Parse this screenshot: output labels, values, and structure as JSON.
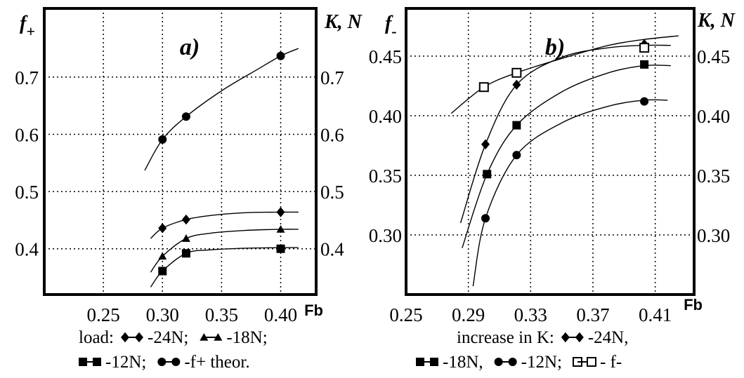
{
  "chart_data": [
    {
      "type": "scatter",
      "panel_label": "a)",
      "xlabel": "Fb",
      "ylabel_left": "f+",
      "ylabel_right": "K, N",
      "xlim": [
        0.2,
        0.43
      ],
      "ylim": [
        0.32,
        0.82
      ],
      "xticks": [
        "0.25",
        "0.30",
        "0.35",
        "0.40"
      ],
      "xtick_values": [
        0.25,
        0.3,
        0.35,
        0.4
      ],
      "yticks_left": [
        "0.4",
        "0.5",
        "0.6",
        "0.7"
      ],
      "yticks_right": [
        "0.4",
        "0.5",
        "0.6",
        "0.7"
      ],
      "ytick_values": [
        0.4,
        0.5,
        0.6,
        0.7
      ],
      "grid": true,
      "series": [
        {
          "name": "-24N",
          "marker": "diamond",
          "points": [
            [
              0.3,
              0.436
            ],
            [
              0.32,
              0.451
            ],
            [
              0.4,
              0.464
            ]
          ],
          "curve": [
            [
              0.29,
              0.418
            ],
            [
              0.3,
              0.436
            ],
            [
              0.32,
              0.451
            ],
            [
              0.34,
              0.458
            ],
            [
              0.37,
              0.463
            ],
            [
              0.4,
              0.464
            ],
            [
              0.415,
              0.464
            ]
          ]
        },
        {
          "name": "-18N",
          "marker": "triangle",
          "points": [
            [
              0.3,
              0.387
            ],
            [
              0.32,
              0.418
            ],
            [
              0.4,
              0.434
            ]
          ],
          "curve": [
            [
              0.29,
              0.359
            ],
            [
              0.3,
              0.387
            ],
            [
              0.32,
              0.418
            ],
            [
              0.34,
              0.427
            ],
            [
              0.37,
              0.432
            ],
            [
              0.4,
              0.434
            ],
            [
              0.415,
              0.434
            ]
          ]
        },
        {
          "name": "-12N",
          "marker": "square",
          "points": [
            [
              0.3,
              0.361
            ],
            [
              0.32,
              0.392
            ],
            [
              0.4,
              0.4
            ]
          ],
          "curve": [
            [
              0.29,
              0.333
            ],
            [
              0.3,
              0.361
            ],
            [
              0.32,
              0.392
            ],
            [
              0.34,
              0.398
            ],
            [
              0.37,
              0.401
            ],
            [
              0.4,
              0.402
            ],
            [
              0.415,
              0.402
            ]
          ]
        },
        {
          "name": "-f+ theor.",
          "marker": "circle",
          "points": [
            [
              0.3,
              0.591
            ],
            [
              0.32,
              0.631
            ],
            [
              0.4,
              0.737
            ]
          ],
          "curve": [
            [
              0.285,
              0.537
            ],
            [
              0.3,
              0.591
            ],
            [
              0.32,
              0.631
            ],
            [
              0.35,
              0.676
            ],
            [
              0.38,
              0.713
            ],
            [
              0.4,
              0.737
            ],
            [
              0.415,
              0.75
            ]
          ]
        }
      ],
      "legend": {
        "prefix": "load:",
        "items": [
          {
            "marker": "diamond",
            "label": "-24N;"
          },
          {
            "marker": "triangle",
            "label": "-18N;"
          },
          {
            "marker": "square",
            "label": "-12N;"
          },
          {
            "marker": "circle",
            "label": "-f+ theor."
          }
        ]
      }
    },
    {
      "type": "scatter",
      "panel_label": "b)",
      "xlabel": "Fb",
      "ylabel_left": "f-",
      "ylabel_right": "K, N",
      "xlim": [
        0.25,
        0.435
      ],
      "ylim": [
        0.25,
        0.49
      ],
      "xticks": [
        "0.25",
        "0.29",
        "0.33",
        "0.37",
        "0.41"
      ],
      "xtick_values": [
        0.25,
        0.29,
        0.33,
        0.37,
        0.41
      ],
      "yticks_left": [
        "0.30",
        "0.35",
        "0.40",
        "0.45"
      ],
      "yticks_right": [
        "0.30",
        "0.35",
        "0.40",
        "0.45"
      ],
      "ytick_values": [
        0.3,
        0.35,
        0.4,
        0.45
      ],
      "grid": true,
      "series": [
        {
          "name": "-24N",
          "marker": "diamond",
          "points": [
            [
              0.301,
              0.376
            ],
            [
              0.321,
              0.426
            ],
            [
              0.403,
              0.46
            ]
          ],
          "curve": [
            [
              0.285,
              0.31
            ],
            [
              0.301,
              0.376
            ],
            [
              0.321,
              0.426
            ],
            [
              0.35,
              0.449
            ],
            [
              0.38,
              0.457
            ],
            [
              0.403,
              0.459
            ],
            [
              0.42,
              0.459
            ]
          ]
        },
        {
          "name": "-18N",
          "marker": "square",
          "points": [
            [
              0.302,
              0.351
            ],
            [
              0.321,
              0.392
            ],
            [
              0.403,
              0.443
            ]
          ],
          "curve": [
            [
              0.286,
              0.289
            ],
            [
              0.302,
              0.351
            ],
            [
              0.321,
              0.392
            ],
            [
              0.35,
              0.42
            ],
            [
              0.38,
              0.436
            ],
            [
              0.403,
              0.442
            ],
            [
              0.42,
              0.442
            ]
          ]
        },
        {
          "name": "-12N",
          "marker": "circle",
          "points": [
            [
              0.301,
              0.314
            ],
            [
              0.321,
              0.367
            ],
            [
              0.403,
              0.412
            ]
          ],
          "curve": [
            [
              0.293,
              0.257
            ],
            [
              0.301,
              0.314
            ],
            [
              0.321,
              0.367
            ],
            [
              0.35,
              0.394
            ],
            [
              0.38,
              0.408
            ],
            [
              0.403,
              0.413
            ],
            [
              0.418,
              0.413
            ]
          ]
        },
        {
          "name": "- f-",
          "marker": "open-square",
          "points": [
            [
              0.3,
              0.424
            ],
            [
              0.321,
              0.436
            ],
            [
              0.403,
              0.457
            ]
          ],
          "curve": [
            [
              0.279,
              0.402
            ],
            [
              0.3,
              0.424
            ],
            [
              0.321,
              0.436
            ],
            [
              0.35,
              0.448
            ],
            [
              0.38,
              0.459
            ],
            [
              0.403,
              0.464
            ],
            [
              0.425,
              0.467
            ]
          ]
        }
      ],
      "legend": {
        "prefix": "increase in K:",
        "items": [
          {
            "marker": "diamond",
            "label": "-24N,"
          },
          {
            "marker": "square",
            "label": "-18N,"
          },
          {
            "marker": "circle",
            "label": "-12N;"
          },
          {
            "marker": "open-square",
            "label": "- f-"
          }
        ]
      }
    }
  ]
}
